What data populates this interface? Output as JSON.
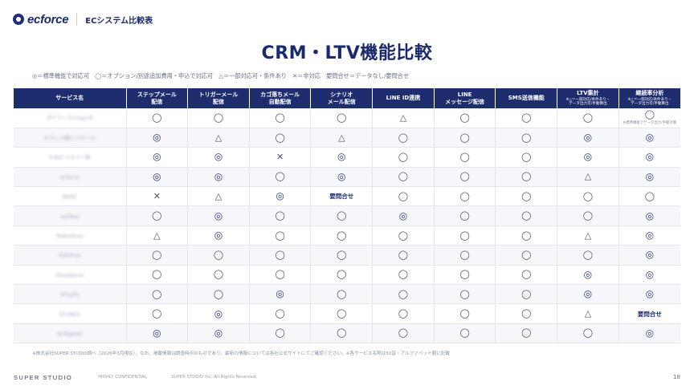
{
  "header": {
    "logo_text": "ecforce",
    "title": "ECシステム比較表"
  },
  "page_title": "CRM・LTV機能比較",
  "legend": "◎＝標準機能で対応可　◯＝オプション/別途追加費用・申込で対応可　△＝一部対応可・条件あり　✕＝非対応　要問合せ＝データなし/要問合せ",
  "table": {
    "columns": [
      {
        "label": "サービス名",
        "sub": ""
      },
      {
        "label": "ステップメール\n配信",
        "sub": ""
      },
      {
        "label": "トリガーメール\n配信",
        "sub": ""
      },
      {
        "label": "カゴ落ちメール\n自動配信",
        "sub": ""
      },
      {
        "label": "シナリオ\nメール配信",
        "sub": ""
      },
      {
        "label": "LINE ID連携",
        "sub": ""
      },
      {
        "label": "LINE\nメッセージ配信",
        "sub": ""
      },
      {
        "label": "SMS送信機能",
        "sub": ""
      },
      {
        "label": "LTV集計",
        "sub": "※△＝一部対応/条件あり・\nデータ出力可/手動算出"
      },
      {
        "label": "継続率分析",
        "sub": "※△＝一部対応/条件あり・\nデータ出力可/手動算出"
      }
    ],
    "rows": [
      {
        "service": "ポケワーク(rasp)タ",
        "cells": [
          "◯",
          "◯",
          "◯",
          "◯",
          "△",
          "◯",
          "◯",
          "◯",
          "◯"
        ],
        "notes": {
          "8": "※標準機能でデータ出力/手動計算"
        }
      },
      {
        "service": "カラレス株にパスール",
        "cells": [
          "◎",
          "△",
          "◯",
          "△",
          "◯",
          "◯",
          "◯",
          "◎",
          "◎"
        ]
      },
      {
        "service": "たぬとつるつー商",
        "cells": [
          "◎",
          "◎",
          "✕",
          "◎",
          "◯",
          "◯",
          "◯",
          "◎",
          "◎"
        ]
      },
      {
        "service": "ecforce",
        "cells": [
          "◎",
          "◎",
          "◯",
          "◎",
          "◯",
          "◯",
          "◯",
          "△",
          "◎"
        ]
      },
      {
        "service": "BASE",
        "cells": [
          "✕",
          "△",
          "◎",
          "要問合せ",
          "◯",
          "◯",
          "◯",
          "◯",
          "◯"
        ]
      },
      {
        "service": "eshfeel",
        "cells": [
          "◯",
          "◎",
          "◯",
          "◯",
          "◎",
          "◯",
          "◯",
          "◯",
          "◎"
        ]
      },
      {
        "service": "MakeShop",
        "cells": [
          "△",
          "◎",
          "◯",
          "◯",
          "◯",
          "◯",
          "◯",
          "△",
          "◎"
        ]
      },
      {
        "service": "Aidishop",
        "cells": [
          "◯",
          "◯",
          "◯",
          "◯",
          "◯",
          "◯",
          "◯",
          "◯",
          "◎"
        ]
      },
      {
        "service": "ShopServe",
        "cells": [
          "◯",
          "◯",
          "◯",
          "◯",
          "◯",
          "◯",
          "◯",
          "◎",
          "◎"
        ]
      },
      {
        "service": "Shopify",
        "cells": [
          "◯",
          "◯",
          "◎",
          "◯",
          "◯",
          "◯",
          "◯",
          "◎",
          "◎"
        ]
      },
      {
        "service": "STORES",
        "cells": [
          "◯",
          "◎",
          "◯",
          "◯",
          "◯",
          "◯",
          "◯",
          "△",
          "要問合せ"
        ]
      },
      {
        "service": "W-Repeat",
        "cells": [
          "◎",
          "◎",
          "◯",
          "◯",
          "◯",
          "◯",
          "◯",
          "◯",
          "◎"
        ]
      }
    ]
  },
  "footnote": "※株式会社SUPER STUDIO調べ（2026年3月現在）。なお、掲載情報は調査時点のものであり、最新の情報については各社公式サイトにてご確認ください。※各サービス名称は50音・アルファベット順に記載",
  "footer": {
    "brand": "SUPER STUDIO",
    "confidential": "HIGHLY CONFIDENTIAL",
    "copyright": "SUPER STUDIO Inc. All Rights Reserved.",
    "page_number": "18"
  },
  "colors": {
    "primary": "#1e2d6e",
    "row_alt": "#f6f7fb"
  }
}
